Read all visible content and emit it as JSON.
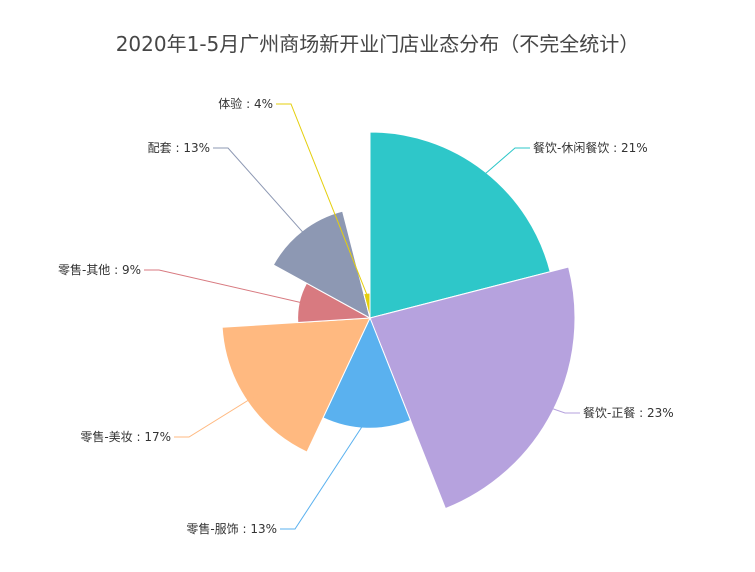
{
  "chart_data": {
    "type": "pie",
    "variant": "rose",
    "title": "2020年1-5月广州商场新开业门店业态分布（不完全统计）",
    "slices": [
      {
        "name": "餐饮-休闲餐饮",
        "value": 21,
        "label": "餐饮-休闲餐饮 : 21%",
        "color": "#2ec7c9"
      },
      {
        "name": "餐饮-正餐",
        "value": 23,
        "label": "餐饮-正餐 : 23%",
        "color": "#b6a2de"
      },
      {
        "name": "零售-服饰",
        "value": 13,
        "label": "零售-服饰 : 13%",
        "color": "#5ab1ef"
      },
      {
        "name": "零售-美妆",
        "value": 17,
        "label": "零售-美妆 : 17%",
        "color": "#ffb980"
      },
      {
        "name": "零售-其他",
        "value": 9,
        "label": "零售-其他 : 9%",
        "color": "#d87a80"
      },
      {
        "name": "配套",
        "value": 13,
        "label": "配套 : 13%",
        "color": "#8d98b3"
      },
      {
        "name": "体验",
        "value": 4,
        "label": "体验 : 4%",
        "color": "#e5cf0d"
      }
    ]
  }
}
